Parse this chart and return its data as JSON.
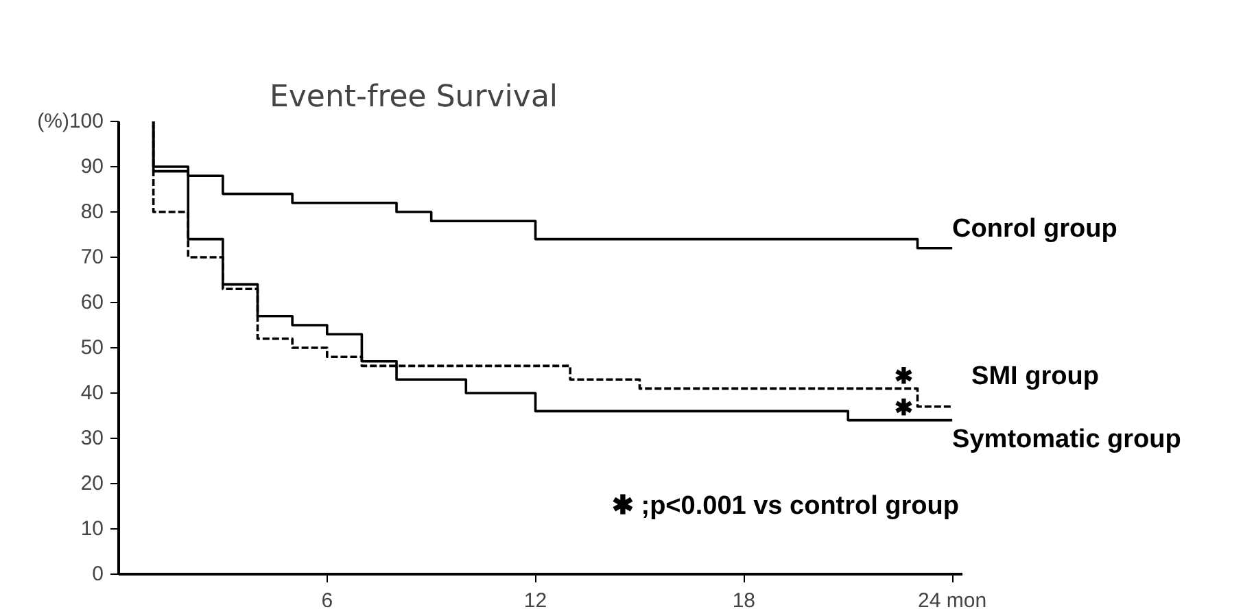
{
  "chart_data": {
    "type": "step",
    "title": "Event-free Survival",
    "xlim": [
      0,
      24.3
    ],
    "ylim": [
      0,
      100
    ],
    "xticks": [
      6,
      12,
      18,
      {
        "value": 24,
        "label": "24 mon"
      }
    ],
    "yticks": [
      0,
      10,
      20,
      30,
      40,
      50,
      60,
      70,
      80,
      {
        "value": 90,
        "label": "90"
      },
      {
        "value": 100,
        "label": "(%)100"
      }
    ],
    "grid": false,
    "marker": "none",
    "series": [
      {
        "name": "Conrol group",
        "color": "#000000",
        "line_style": "solid",
        "x": [
          1,
          1,
          2,
          3,
          5,
          8,
          9,
          12,
          23,
          24
        ],
        "values": [
          100,
          90,
          88,
          84,
          82,
          80,
          78,
          74,
          72,
          72
        ]
      },
      {
        "name": "SMI group",
        "color": "#000000",
        "line_style": "dashed",
        "x": [
          1,
          1,
          2,
          3,
          4,
          5,
          6,
          7,
          13,
          15,
          23,
          24
        ],
        "values": [
          100,
          80,
          70,
          63,
          52,
          50,
          48,
          46,
          43,
          41,
          37,
          37
        ]
      },
      {
        "name": "Symtomatic group",
        "color": "#000000",
        "line_style": "solid",
        "x": [
          1,
          1,
          2,
          3,
          4,
          5,
          6,
          7,
          8,
          10,
          12,
          21,
          24
        ],
        "values": [
          100,
          89,
          74,
          64,
          57,
          55,
          53,
          47,
          43,
          40,
          36,
          34,
          34
        ]
      }
    ],
    "annotations": [
      "✱",
      "✱",
      "✱ ;p<0.001 vs control group"
    ]
  }
}
